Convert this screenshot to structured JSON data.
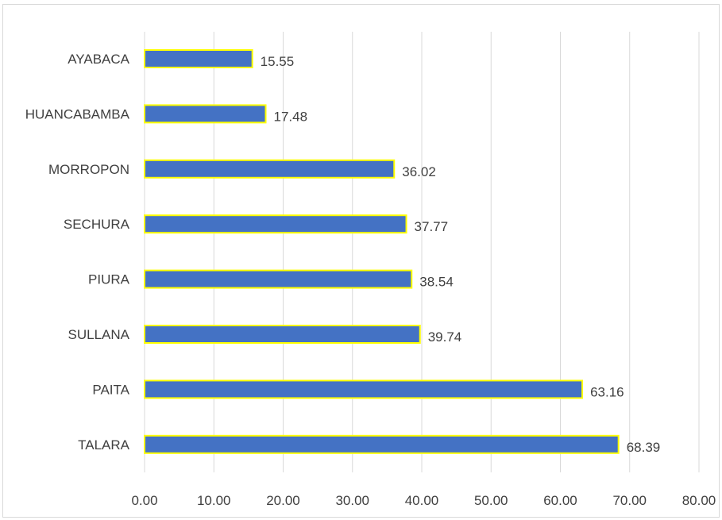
{
  "chart_data": {
    "type": "bar",
    "orientation": "horizontal",
    "categories": [
      "AYABACA",
      "HUANCABAMBA",
      "MORROPON",
      "SECHURA",
      "PIURA",
      "SULLANA",
      "PAITA",
      "TALARA"
    ],
    "values": [
      15.55,
      17.48,
      36.02,
      37.77,
      38.54,
      39.74,
      63.16,
      68.39
    ],
    "value_labels": [
      "15.55",
      "17.48",
      "36.02",
      "37.77",
      "38.54",
      "39.74",
      "63.16",
      "68.39"
    ],
    "xlim": [
      0,
      80
    ],
    "x_ticks": [
      "0.00",
      "10.00",
      "20.00",
      "30.00",
      "40.00",
      "50.00",
      "60.00",
      "70.00",
      "80.00"
    ],
    "grid": "vertical",
    "legend": "none",
    "bar_color": "#4472C4",
    "bar_border_color": "#FFFF00",
    "gridline_color": "#d9d9d9",
    "text_color": "#404040"
  }
}
